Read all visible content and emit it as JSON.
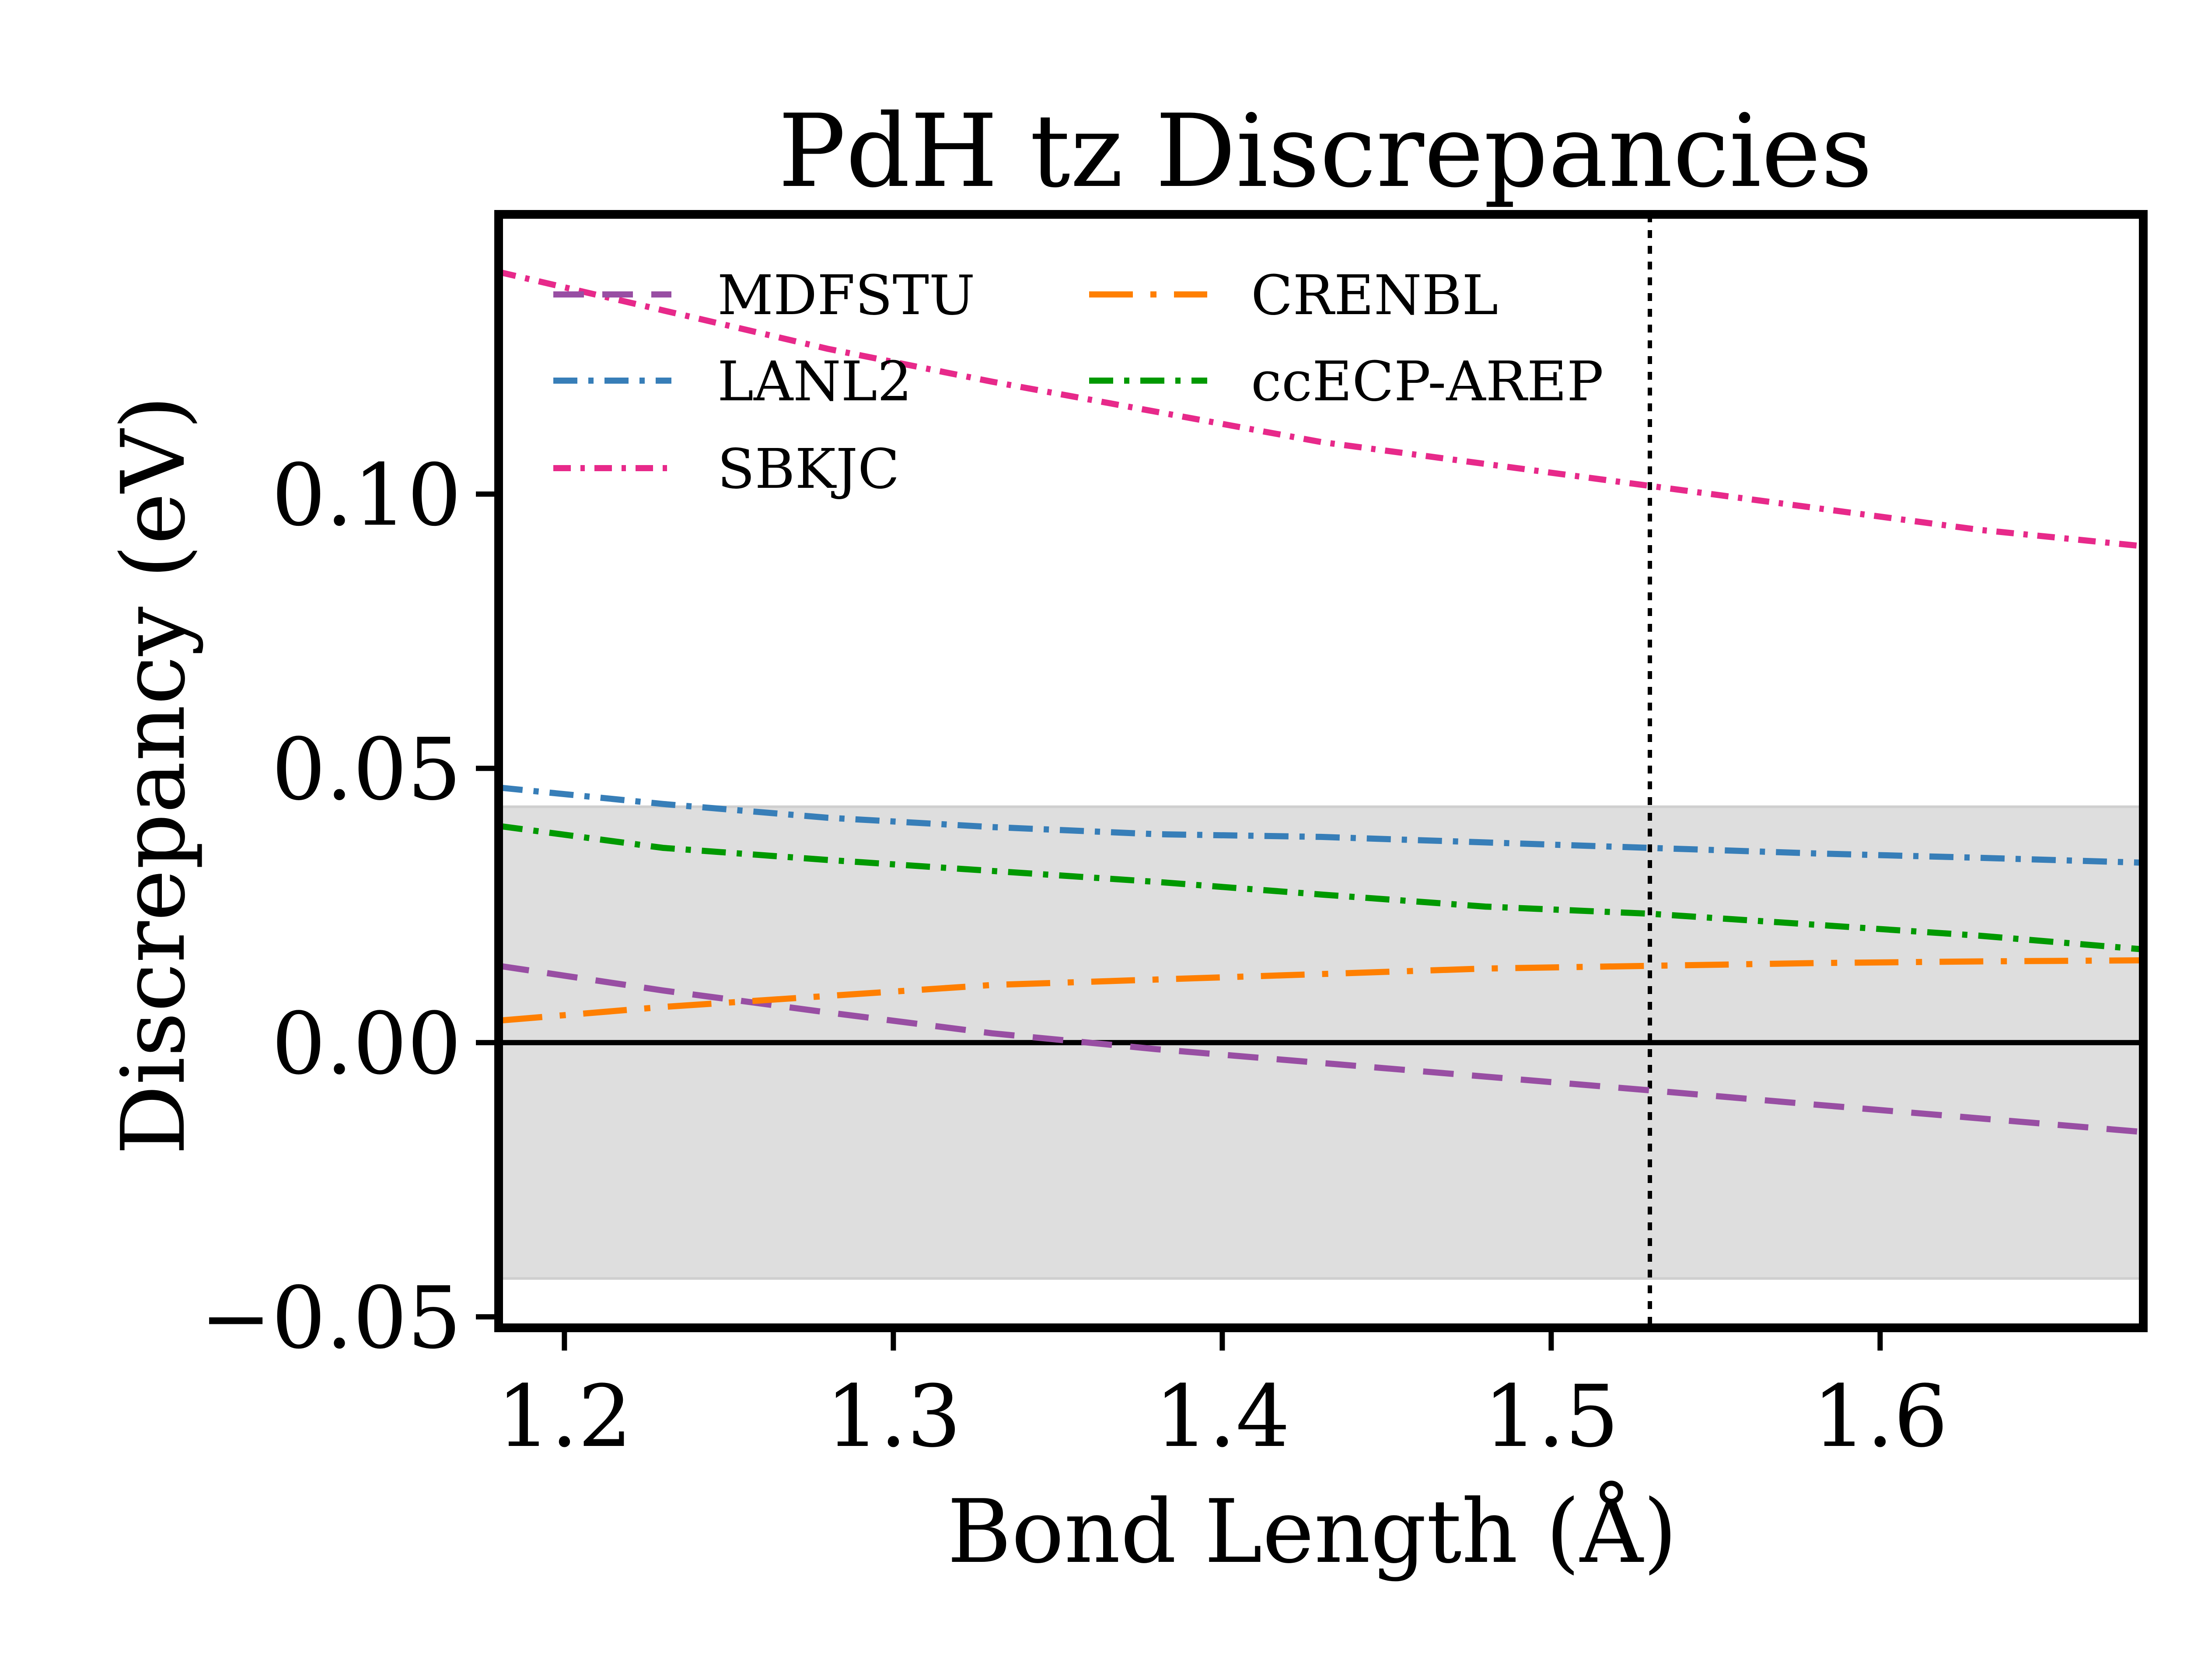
{
  "chart_data": {
    "type": "line",
    "title": "PdH tz Discrepancies",
    "xlabel": "Bond Length (Å)",
    "ylabel": "Discrepancy (eV)",
    "xlim": [
      1.18,
      1.68
    ],
    "ylim": [
      -0.052,
      0.151
    ],
    "xticks": [
      1.2,
      1.3,
      1.4,
      1.5,
      1.6
    ],
    "xtick_labels": [
      "1.2",
      "1.3",
      "1.4",
      "1.5",
      "1.6"
    ],
    "yticks": [
      -0.05,
      0.0,
      0.05,
      0.1
    ],
    "ytick_labels": [
      "−0.05",
      "0.00",
      "0.05",
      "0.10"
    ],
    "shaded_band": [
      -0.043,
      0.043
    ],
    "hline": 0.0,
    "vline": 1.53,
    "grid": false,
    "legend_position": "top-left",
    "legend_columns": 2,
    "x": [
      1.18,
      1.23,
      1.28,
      1.33,
      1.38,
      1.43,
      1.48,
      1.53,
      1.58,
      1.63,
      1.68
    ],
    "series": [
      {
        "name": "MDFSTU",
        "color": "#984ea3",
        "dash": "dashed",
        "values": [
          0.014,
          0.0095,
          0.0055,
          0.0017,
          -0.0012,
          -0.0037,
          -0.0062,
          -0.0087,
          -0.0113,
          -0.0138,
          -0.0163
        ]
      },
      {
        "name": "LANL2",
        "color": "#377eb8",
        "dash": "dashdot",
        "values": [
          0.0465,
          0.0435,
          0.041,
          0.0393,
          0.038,
          0.0375,
          0.0365,
          0.0355,
          0.0345,
          0.0337,
          0.0328
        ]
      },
      {
        "name": "SBKJC",
        "color": "#e7298a",
        "dash": "dashdot-dense",
        "values": [
          0.1405,
          0.1335,
          0.1265,
          0.1205,
          0.115,
          0.1095,
          0.1055,
          0.1015,
          0.0975,
          0.0935,
          0.0905
        ]
      },
      {
        "name": "CRENBL",
        "color": "#ff7f00",
        "dash": "longdashdot",
        "values": [
          0.004,
          0.0065,
          0.0085,
          0.0105,
          0.0115,
          0.0125,
          0.0135,
          0.014,
          0.0145,
          0.0148,
          0.015
        ]
      },
      {
        "name": "ccECP-AREP",
        "color": "#009900",
        "dash": "dashdot",
        "values": [
          0.0395,
          0.0355,
          0.0333,
          0.0313,
          0.0293,
          0.027,
          0.0248,
          0.0235,
          0.0215,
          0.0195,
          0.017
        ]
      }
    ]
  }
}
